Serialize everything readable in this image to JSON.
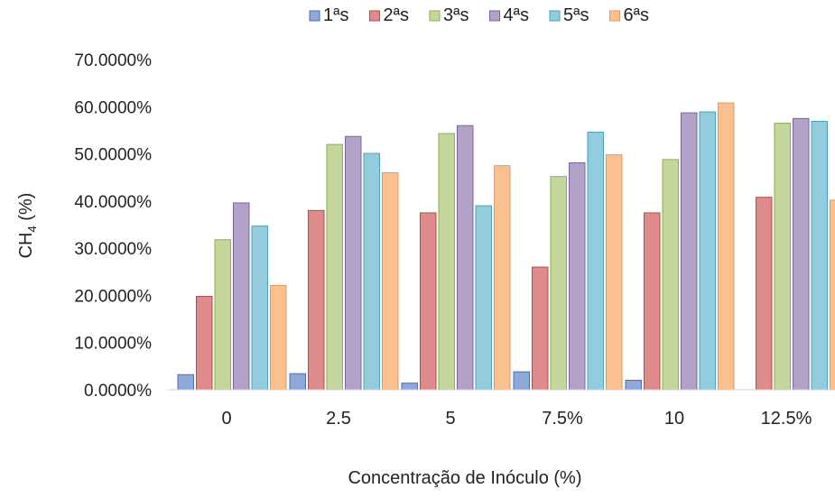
{
  "chart_data": {
    "type": "bar",
    "title": "",
    "xlabel": "Concentração de Inóculo (%)",
    "ylabel_main": "CH",
    "ylabel_sub": "4",
    "ylabel_tail": " (%)",
    "categories": [
      "0",
      "2.5",
      "5",
      "7.5%",
      "10",
      "12.5%"
    ],
    "ylim": [
      0,
      70
    ],
    "yticks": [
      0,
      10,
      20,
      30,
      40,
      50,
      60,
      70
    ],
    "ytick_labels": [
      "0.0000%",
      "10.0000%",
      "20.0000%",
      "30.0000%",
      "40.0000%",
      "50.0000%",
      "60.0000%",
      "70.0000%"
    ],
    "grid": false,
    "legend_position": "top",
    "series": [
      {
        "name": "1ªs",
        "fill": "#8EA9D8",
        "stroke": "#4A6FB5",
        "values": [
          3.2,
          3.4,
          1.4,
          3.8,
          2.0,
          null
        ]
      },
      {
        "name": "2ªs",
        "fill": "#DE8C8B",
        "stroke": "#B84A48",
        "values": [
          19.8,
          38.0,
          37.5,
          26.0,
          37.5,
          40.8
        ]
      },
      {
        "name": "3ªs",
        "fill": "#C3D69B",
        "stroke": "#8FAE55",
        "values": [
          31.8,
          52.0,
          54.3,
          45.2,
          48.8,
          56.5
        ]
      },
      {
        "name": "4ªs",
        "fill": "#B3A2C7",
        "stroke": "#7E649F",
        "values": [
          39.6,
          53.7,
          56.0,
          48.1,
          58.7,
          57.5
        ]
      },
      {
        "name": "5ªs",
        "fill": "#93CDDD",
        "stroke": "#4AA3BD",
        "values": [
          34.7,
          50.1,
          39.0,
          54.6,
          58.9,
          56.9
        ]
      },
      {
        "name": "6ªs",
        "fill": "#FAC090",
        "stroke": "#EE9650",
        "values": [
          22.1,
          46.0,
          47.5,
          49.8,
          60.8,
          40.2
        ]
      }
    ]
  }
}
